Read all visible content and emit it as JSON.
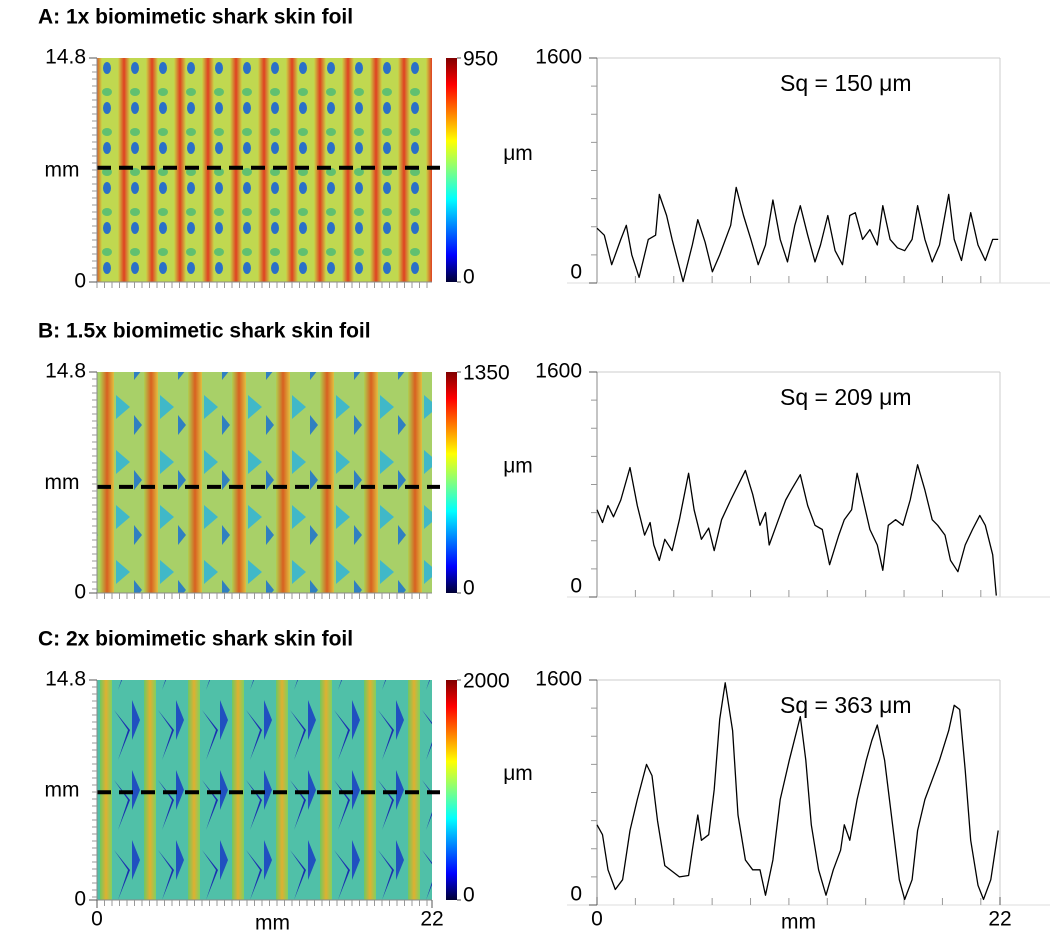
{
  "chart_data": [
    {
      "type": "surface",
      "title": "A: 1x biomimetic shark skin foil",
      "ylabel": "mm",
      "ylim": [
        0,
        14.8
      ],
      "yticks": [
        0,
        14.8
      ],
      "xlim": [
        0,
        22
      ],
      "colorbar": {
        "lim": [
          0,
          950
        ],
        "ticks": [
          0,
          950
        ],
        "label": "μm"
      }
    },
    {
      "type": "line",
      "annotation": "Sq = 150 μm",
      "color": "#000000",
      "xlim": [
        0,
        22
      ],
      "ylim": [
        0,
        1600
      ],
      "yticks": [
        0,
        1600
      ],
      "x": [
        0,
        0.4,
        0.8,
        1.3,
        1.6,
        1.9,
        2.3,
        2.8,
        3.2,
        3.4,
        3.8,
        4.1,
        4.4,
        4.7,
        5.2,
        5.5,
        5.9,
        6.3,
        6.7,
        7.3,
        7.6,
        8.0,
        8.4,
        8.8,
        9.2,
        9.6,
        10.0,
        10.4,
        10.8,
        11.1,
        11.5,
        11.9,
        12.2,
        12.6,
        13.0,
        13.4,
        13.8,
        14.1,
        14.5,
        14.9,
        15.3,
        15.6,
        16.0,
        16.4,
        16.8,
        17.2,
        17.5,
        17.9,
        18.3,
        18.7,
        19.2,
        19.5,
        19.9,
        20.4,
        20.8,
        21.2,
        21.6,
        21.9
      ],
      "values": [
        390,
        340,
        130,
        310,
        410,
        200,
        40,
        310,
        340,
        630,
        480,
        310,
        160,
        10,
        270,
        450,
        290,
        80,
        200,
        410,
        680,
        480,
        310,
        130,
        270,
        590,
        310,
        150,
        410,
        550,
        340,
        150,
        270,
        480,
        230,
        130,
        480,
        500,
        310,
        380,
        270,
        550,
        310,
        250,
        230,
        310,
        550,
        310,
        150,
        270,
        630,
        310,
        160,
        500,
        270,
        160,
        310,
        310
      ]
    },
    {
      "type": "surface",
      "title": "B: 1.5x biomimetic shark skin foil",
      "ylabel": "mm",
      "ylim": [
        0,
        14.8
      ],
      "yticks": [
        0,
        14.8
      ],
      "xlim": [
        0,
        22
      ],
      "colorbar": {
        "lim": [
          0,
          1350
        ],
        "ticks": [
          0,
          1350
        ],
        "label": "μm"
      }
    },
    {
      "type": "line",
      "annotation": "Sq = 209 μm",
      "color": "#000000",
      "xlim": [
        0,
        22
      ],
      "ylim": [
        0,
        1600
      ],
      "yticks": [
        0,
        1600
      ],
      "x": [
        0,
        0.3,
        0.6,
        0.9,
        1.3,
        1.8,
        2.2,
        2.6,
        2.9,
        3.1,
        3.4,
        3.7,
        4.1,
        4.5,
        5.0,
        5.3,
        5.7,
        6.1,
        6.4,
        6.8,
        7.3,
        8.1,
        8.5,
        8.9,
        9.2,
        9.4,
        9.9,
        10.3,
        10.6,
        11.1,
        11.5,
        11.9,
        12.3,
        12.7,
        13.2,
        13.5,
        13.9,
        14.2,
        14.6,
        14.9,
        15.3,
        15.6,
        15.9,
        16.3,
        16.7,
        17.1,
        17.5,
        17.9,
        18.3,
        18.6,
        19.0,
        19.3,
        19.7,
        20.1,
        20.5,
        20.9,
        21.2,
        21.6,
        21.8
      ],
      "values": [
        620,
        530,
        650,
        570,
        690,
        920,
        650,
        440,
        530,
        370,
        260,
        410,
        330,
        550,
        880,
        620,
        410,
        490,
        330,
        550,
        690,
        900,
        730,
        510,
        600,
        370,
        550,
        690,
        760,
        870,
        650,
        510,
        480,
        230,
        440,
        550,
        620,
        880,
        650,
        480,
        370,
        190,
        510,
        550,
        510,
        690,
        940,
        760,
        550,
        510,
        440,
        260,
        180,
        370,
        480,
        580,
        510,
        300,
        10
      ]
    },
    {
      "type": "surface",
      "title": "C: 2x biomimetic shark skin foil",
      "ylabel": "mm",
      "ylim": [
        0,
        14.8
      ],
      "yticks": [
        0,
        14.8
      ],
      "xlim": [
        0,
        22
      ],
      "xticks": [
        0,
        22
      ],
      "xlabel": "mm",
      "colorbar": {
        "lim": [
          0,
          2000
        ],
        "ticks": [
          0,
          2000
        ],
        "label": "μm"
      }
    },
    {
      "type": "line",
      "annotation": "Sq = 363 μm",
      "color": "#000000",
      "xlim": [
        0,
        22
      ],
      "xticks": [
        0,
        22
      ],
      "xlabel": "mm",
      "ylim": [
        0,
        1600
      ],
      "yticks": [
        0,
        1600
      ],
      "x": [
        0,
        0.3,
        0.6,
        1.0,
        1.4,
        1.8,
        2.2,
        2.7,
        3.0,
        3.3,
        3.7,
        4.1,
        4.5,
        5.0,
        5.2,
        5.5,
        5.7,
        6.1,
        6.4,
        6.7,
        7.0,
        7.4,
        7.7,
        8.1,
        8.5,
        8.9,
        9.2,
        9.6,
        10.0,
        10.5,
        11.1,
        11.4,
        11.7,
        12.1,
        12.5,
        12.9,
        13.3,
        13.5,
        13.8,
        14.2,
        14.7,
        15.0,
        15.3,
        15.7,
        16.2,
        16.5,
        16.8,
        17.2,
        17.5,
        17.9,
        18.3,
        18.7,
        19.2,
        19.5,
        19.8,
        20.1,
        20.4,
        20.8,
        21.1,
        21.5,
        21.9
      ],
      "values": [
        570,
        500,
        250,
        110,
        180,
        530,
        750,
        1000,
        920,
        600,
        280,
        240,
        200,
        210,
        390,
        640,
        460,
        500,
        820,
        1320,
        1580,
        1240,
        640,
        320,
        250,
        250,
        70,
        320,
        750,
        1030,
        1340,
        1030,
        570,
        250,
        70,
        250,
        390,
        570,
        460,
        750,
        1030,
        1170,
        1280,
        1030,
        500,
        180,
        40,
        180,
        530,
        750,
        890,
        1030,
        1240,
        1420,
        1390,
        960,
        460,
        140,
        40,
        180,
        530
      ]
    }
  ]
}
